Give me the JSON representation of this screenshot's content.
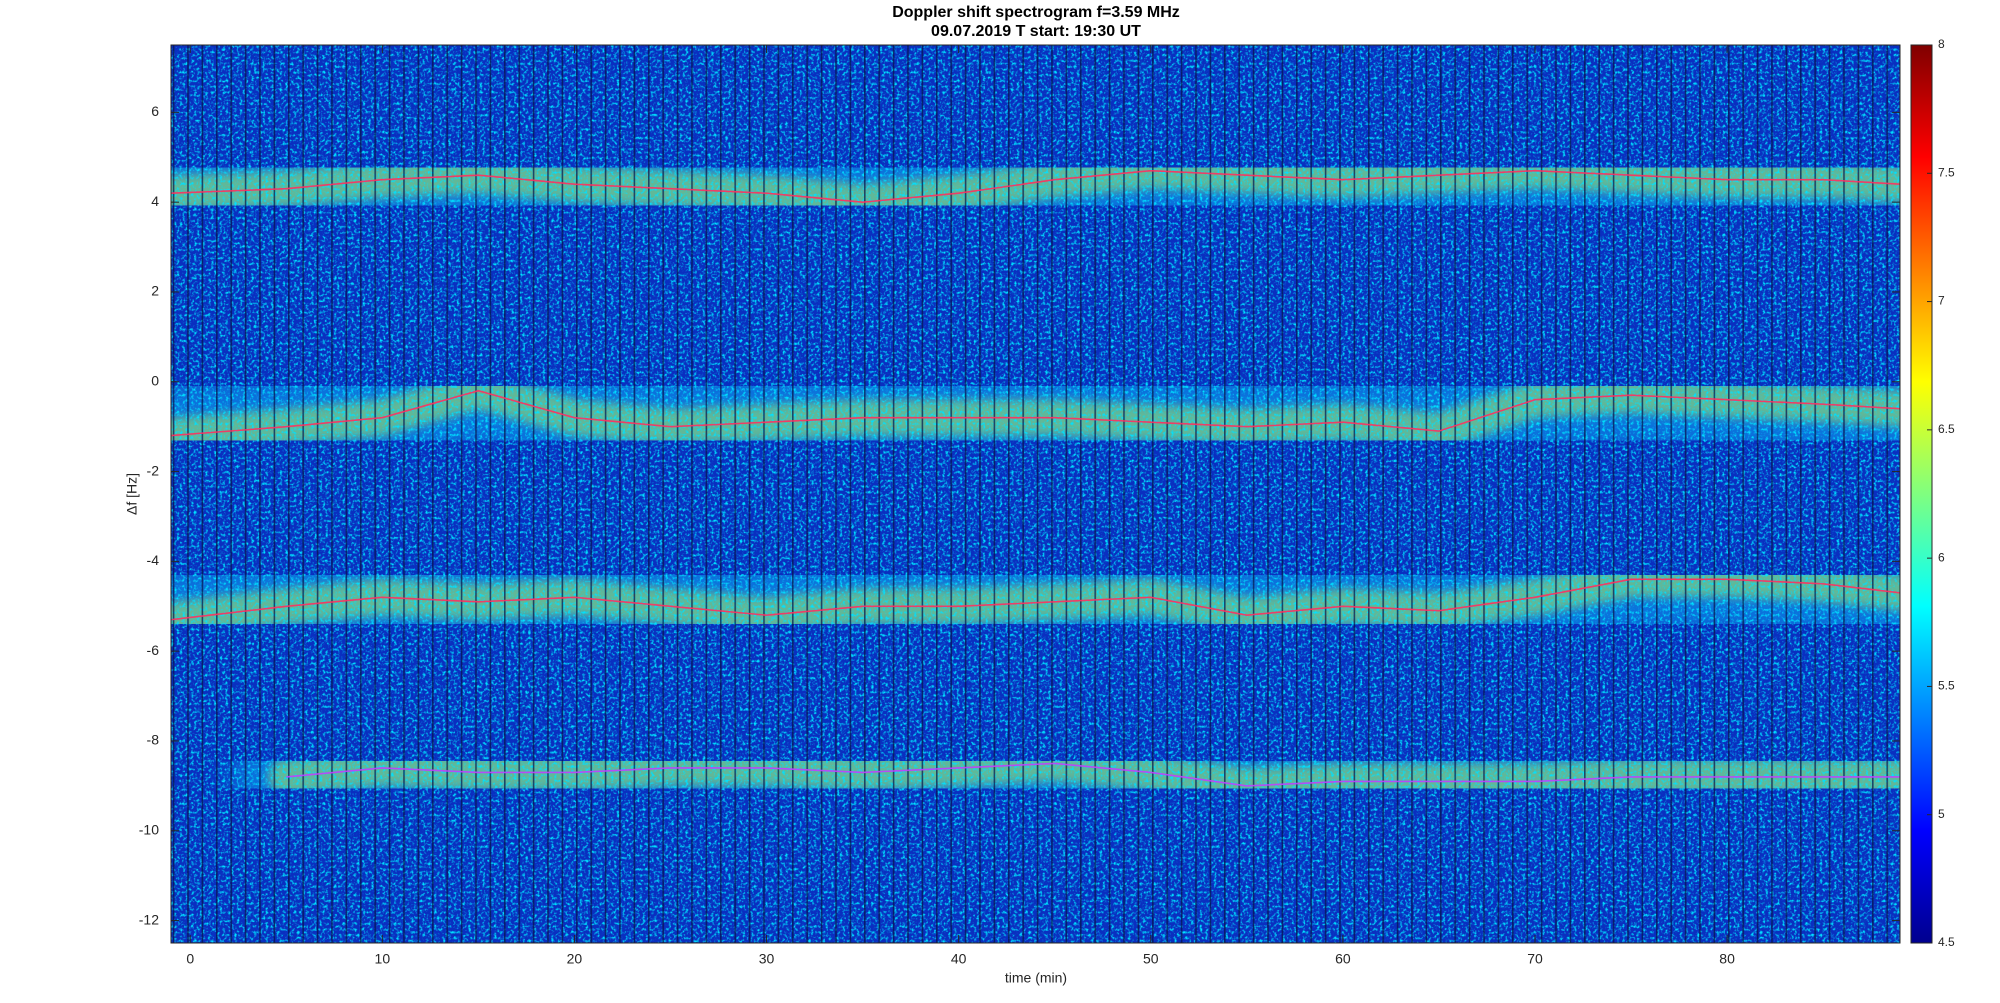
{
  "chart_data": {
    "type": "spectrogram",
    "title": "Doppler shift spectrogram f=3.59 MHz",
    "subtitle": "09.07.2019   T start: 19:30 UT",
    "x_label": "time (min)",
    "y_label": "Δf [Hz]",
    "xlim": [
      -1,
      89
    ],
    "xticks": [
      0,
      10,
      20,
      30,
      40,
      50,
      60,
      70,
      80
    ],
    "ylim": [
      -12.5,
      7.5
    ],
    "yticks": [
      -12,
      -10,
      -8,
      -6,
      -4,
      -2,
      0,
      2,
      4,
      6
    ],
    "clim": [
      4.5,
      8
    ],
    "cticks": [
      4.5,
      5,
      5.5,
      6,
      6.5,
      7,
      7.5,
      8
    ],
    "colormap": "jet",
    "x": [
      -1,
      5,
      10,
      15,
      20,
      25,
      30,
      35,
      40,
      45,
      50,
      55,
      60,
      65,
      70,
      75,
      80,
      85,
      89
    ],
    "series": [
      {
        "color": "#ff3060",
        "values": [
          4.2,
          4.3,
          4.5,
          4.6,
          4.4,
          4.3,
          4.2,
          4.0,
          4.2,
          4.5,
          4.7,
          4.6,
          4.5,
          4.6,
          4.7,
          4.6,
          4.5,
          4.5,
          4.4
        ]
      },
      {
        "color": "#ff3060",
        "values": [
          -1.2,
          -1.0,
          -0.8,
          -0.2,
          -0.8,
          -1.0,
          -0.9,
          -0.8,
          -0.8,
          -0.8,
          -0.9,
          -1.0,
          -0.9,
          -1.1,
          -0.4,
          -0.3,
          -0.4,
          -0.5,
          -0.6
        ]
      },
      {
        "color": "#ff3060",
        "values": [
          -5.3,
          -5.0,
          -4.8,
          -4.9,
          -4.8,
          -5.0,
          -5.2,
          -5.0,
          -5.0,
          -4.9,
          -4.8,
          -5.2,
          -5.0,
          -5.1,
          -4.8,
          -4.4,
          -4.4,
          -4.5,
          -4.7
        ]
      },
      {
        "color": "#c040ff",
        "values": [
          null,
          -8.8,
          -8.6,
          -8.7,
          -8.7,
          -8.6,
          -8.6,
          -8.7,
          -8.6,
          -8.5,
          -8.7,
          -9.0,
          -8.9,
          -8.9,
          -8.9,
          -8.8,
          -8.8,
          -8.8,
          -8.8
        ]
      }
    ]
  }
}
